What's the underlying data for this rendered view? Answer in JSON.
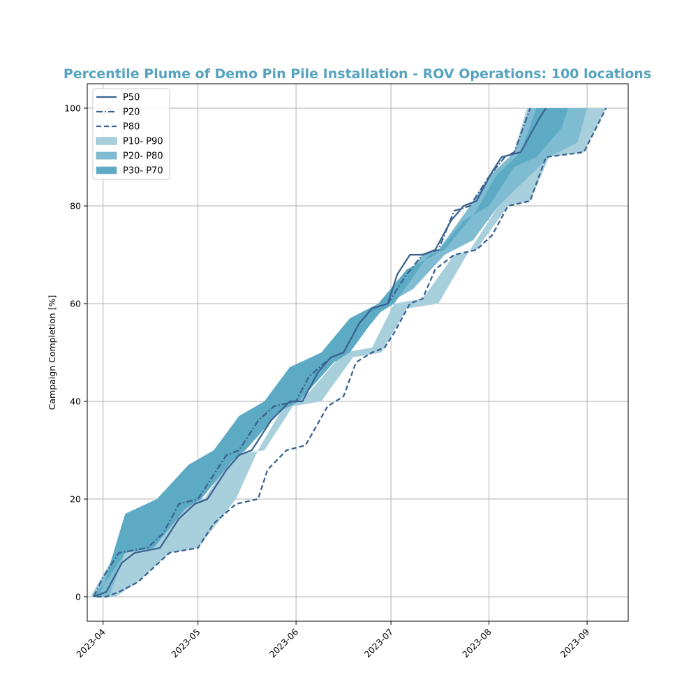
{
  "chart_data": {
    "type": "area",
    "title": "Percentile Plume of Demo Pin Pile Installation - ROV Operations: 100 locations",
    "xlabel": "",
    "ylabel": "Campaign Completion [%]",
    "x_ticks": [
      "2023-04",
      "2023-05",
      "2023-06",
      "2023-07",
      "2023-08",
      "2023-09"
    ],
    "y_ticks": [
      "0",
      "20",
      "40",
      "60",
      "80",
      "100"
    ],
    "xlim": [
      "2023-03-27",
      "2023-09-14"
    ],
    "ylim": [
      -5,
      105
    ],
    "grid": true,
    "legend_position": "top-left",
    "colors": {
      "title": "#56a3bf",
      "line": "#3a6391",
      "band_p10_p90": "#a8cfdc",
      "band_p20_p80": "#7fbcd1",
      "band_p30_p70": "#5daac4",
      "grid": "#b0b0b0"
    },
    "legend": [
      "P50",
      "P20",
      "P80",
      "P10- P90",
      "P20- P80",
      "P30- P70"
    ],
    "series": [
      {
        "name": "P20",
        "style": "dashdot",
        "x": [
          "2023-03-29",
          "2023-04-01",
          "2023-04-03",
          "2023-04-06",
          "2023-04-15",
          "2023-04-20",
          "2023-04-25",
          "2023-05-01",
          "2023-05-04",
          "2023-05-10",
          "2023-05-14",
          "2023-05-20",
          "2023-05-25",
          "2023-06-01",
          "2023-06-05",
          "2023-06-12",
          "2023-06-16",
          "2023-06-21",
          "2023-06-25",
          "2023-06-30",
          "2023-07-06",
          "2023-07-11",
          "2023-07-16",
          "2023-07-21",
          "2023-07-26",
          "2023-08-01",
          "2023-08-06",
          "2023-08-09",
          "2023-08-14"
        ],
        "y": [
          0,
          4,
          6,
          9,
          10,
          13,
          19,
          20,
          23,
          29,
          30,
          36,
          39,
          40,
          45,
          49,
          50,
          56,
          59,
          60,
          66,
          70,
          71,
          79,
          80,
          86,
          90,
          91,
          100
        ]
      },
      {
        "name": "P50",
        "style": "solid",
        "x": [
          "2023-03-29",
          "2023-04-02",
          "2023-04-07",
          "2023-04-11",
          "2023-04-19",
          "2023-04-25",
          "2023-04-30",
          "2023-05-04",
          "2023-05-10",
          "2023-05-14",
          "2023-05-18",
          "2023-05-24",
          "2023-05-30",
          "2023-06-03",
          "2023-06-08",
          "2023-06-12",
          "2023-06-16",
          "2023-06-21",
          "2023-06-25",
          "2023-06-30",
          "2023-07-03",
          "2023-07-07",
          "2023-07-11",
          "2023-07-15",
          "2023-07-20",
          "2023-07-24",
          "2023-07-28",
          "2023-08-02",
          "2023-08-05",
          "2023-08-11",
          "2023-08-17",
          "2023-08-19"
        ],
        "y": [
          0,
          1,
          7,
          9,
          10,
          16,
          19,
          20,
          26,
          29,
          30,
          36,
          40,
          40,
          46,
          49,
          50,
          56,
          59,
          60,
          66,
          70,
          70,
          71,
          77,
          80,
          81,
          87,
          90,
          91,
          98,
          100
        ]
      },
      {
        "name": "P80",
        "style": "dashed",
        "x": [
          "2023-03-30",
          "2023-04-02",
          "2023-04-06",
          "2023-04-12",
          "2023-04-17",
          "2023-04-22",
          "2023-05-01",
          "2023-05-06",
          "2023-05-13",
          "2023-05-20",
          "2023-05-23",
          "2023-05-29",
          "2023-06-04",
          "2023-06-11",
          "2023-06-16",
          "2023-06-20",
          "2023-06-25",
          "2023-06-29",
          "2023-07-02",
          "2023-07-07",
          "2023-07-11",
          "2023-07-15",
          "2023-07-21",
          "2023-07-28",
          "2023-08-02",
          "2023-08-07",
          "2023-08-14",
          "2023-08-19",
          "2023-08-31",
          "2023-09-07"
        ],
        "y": [
          0,
          0,
          1,
          3,
          6,
          9,
          10,
          15,
          19,
          20,
          26,
          30,
          31,
          39,
          41,
          48,
          50,
          51,
          54,
          60,
          61,
          67,
          70,
          71,
          74,
          80,
          81,
          90,
          91,
          100
        ]
      }
    ],
    "bands": [
      {
        "name": "P10- P90",
        "x_upper": [
          "2023-03-28",
          "2023-04-05",
          "2023-04-14",
          "2023-04-24",
          "2023-05-03",
          "2023-05-12",
          "2023-05-22",
          "2023-05-31",
          "2023-06-09",
          "2023-06-19",
          "2023-06-28",
          "2023-07-06",
          "2023-07-16",
          "2023-07-25",
          "2023-08-04",
          "2023-08-13"
        ],
        "y_upper": [
          0,
          9,
          10,
          19,
          20,
          29,
          30,
          39,
          40,
          49,
          50,
          59,
          60,
          70,
          80,
          100
        ],
        "x_lower": [
          "2023-09-07",
          "2023-08-31",
          "2023-08-20",
          "2023-08-14",
          "2023-08-07",
          "2023-07-28",
          "2023-07-21",
          "2023-07-11",
          "2023-07-02",
          "2023-06-25",
          "2023-06-16",
          "2023-06-04",
          "2023-05-29",
          "2023-05-20",
          "2023-05-13",
          "2023-05-01",
          "2023-04-22",
          "2023-04-12",
          "2023-04-05",
          "2023-03-30"
        ],
        "y_lower": [
          100,
          91,
          90,
          81,
          80,
          71,
          70,
          61,
          60,
          51,
          50,
          41,
          40,
          30,
          20,
          10,
          9,
          3,
          0,
          0
        ]
      },
      {
        "name": "P20- P80",
        "x_upper": [
          "2023-03-29",
          "2023-04-03",
          "2023-04-06",
          "2023-04-15",
          "2023-04-25",
          "2023-05-01",
          "2023-05-10",
          "2023-05-14",
          "2023-05-25",
          "2023-06-01",
          "2023-06-12",
          "2023-06-16",
          "2023-06-25",
          "2023-06-30",
          "2023-07-11",
          "2023-07-16",
          "2023-07-26",
          "2023-08-01",
          "2023-08-09",
          "2023-08-14"
        ],
        "y_upper": [
          0,
          6,
          9,
          10,
          19,
          20,
          29,
          30,
          39,
          40,
          49,
          50,
          59,
          60,
          70,
          71,
          80,
          86,
          91,
          100
        ],
        "x_lower": [
          "2023-09-01",
          "2023-08-29",
          "2023-08-20",
          "2023-08-12",
          "2023-08-04",
          "2023-07-27",
          "2023-07-18",
          "2023-07-08",
          "2023-06-30",
          "2023-06-21",
          "2023-06-12",
          "2023-06-02",
          "2023-05-26",
          "2023-05-18",
          "2023-05-09",
          "2023-04-30",
          "2023-04-20",
          "2023-04-10",
          "2023-04-03",
          "2023-03-30"
        ],
        "y_lower": [
          100,
          93,
          90,
          85,
          80,
          73,
          70,
          63,
          60,
          53,
          50,
          43,
          40,
          33,
          30,
          23,
          19,
          13,
          0,
          0
        ]
      },
      {
        "name": "P30- P70",
        "x_upper": [
          "2023-03-29",
          "2023-04-04",
          "2023-04-08",
          "2023-04-17",
          "2023-04-27",
          "2023-05-02",
          "2023-05-12",
          "2023-05-16",
          "2023-05-27",
          "2023-06-02",
          "2023-06-13",
          "2023-06-18",
          "2023-06-27",
          "2023-07-02",
          "2023-07-13",
          "2023-07-18",
          "2023-07-28",
          "2023-08-03",
          "2023-08-11",
          "2023-08-16"
        ],
        "y_upper": [
          0,
          5,
          9,
          10,
          18,
          20,
          28,
          30,
          38,
          40,
          48,
          50,
          58,
          60,
          70,
          71,
          79,
          86,
          91,
          100
        ],
        "x_lower": [
          "2023-08-26",
          "2023-08-24",
          "2023-08-16",
          "2023-08-09",
          "2023-08-01",
          "2023-07-24",
          "2023-07-15",
          "2023-07-06",
          "2023-06-27",
          "2023-06-18",
          "2023-06-09",
          "2023-05-30",
          "2023-05-22",
          "2023-05-14",
          "2023-05-06",
          "2023-04-28",
          "2023-04-18",
          "2023-04-08",
          "2023-04-01",
          "2023-03-30"
        ],
        "y_lower": [
          100,
          96,
          90,
          88,
          80,
          77,
          70,
          67,
          60,
          57,
          50,
          47,
          40,
          37,
          30,
          27,
          20,
          17,
          2,
          0
        ]
      }
    ]
  }
}
